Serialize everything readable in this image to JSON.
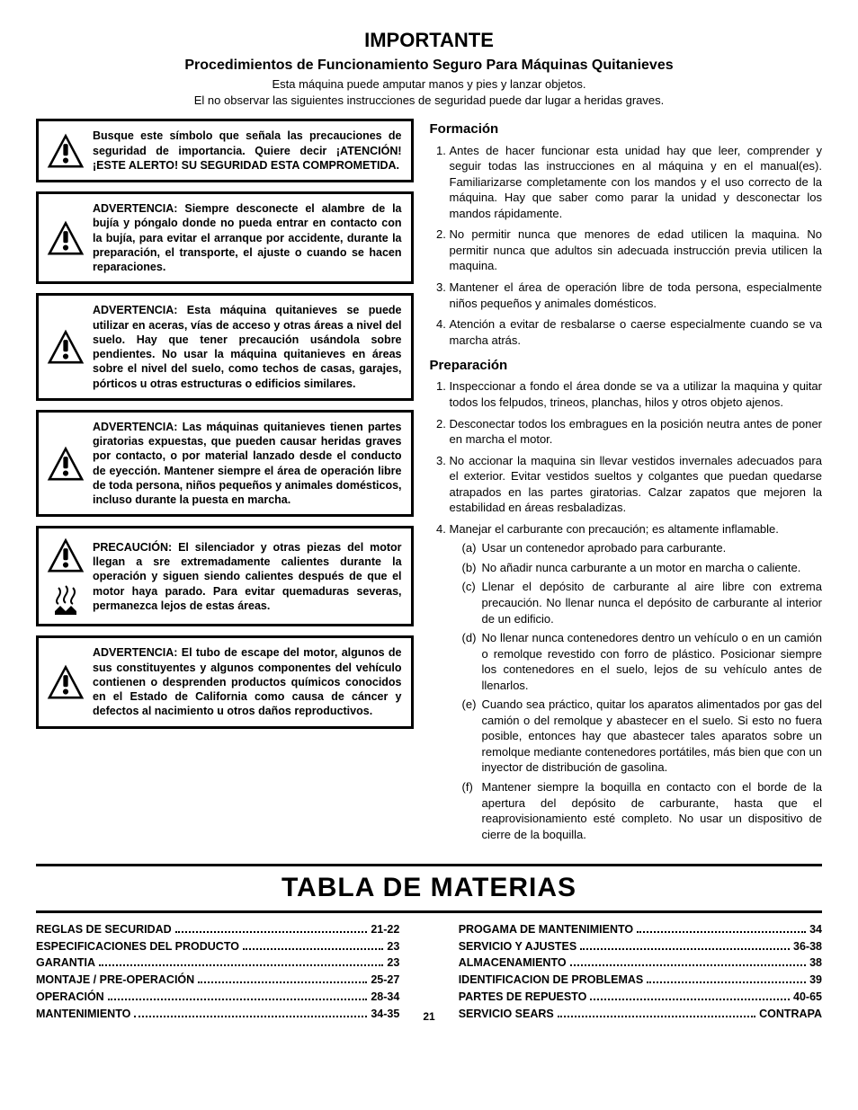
{
  "header": {
    "title": "IMPORTANTE",
    "subtitle": "Procedimientos de Funcionamiento Seguro Para Máquinas Quitanieves",
    "line1": "Esta máquina puede amputar manos y pies y lanzar objetos.",
    "line2": "El no observar las siguientes instrucciones de seguridad puede dar lugar a heridas graves."
  },
  "warnings": [
    {
      "text": "Busque este símbolo que señala las precauciones de seguridad de importancia. Quiere decir ¡ATENCIÓN! ¡ESTE ALERTO! SU SEGURIDAD ESTA COMPROMETIDA."
    },
    {
      "text": "ADVERTENCIA: Siempre desconecte el alambre de la bujía y póngalo donde no pueda entrar en contacto con la bujía, para evitar el arranque por accidente, durante la preparación, el transporte, el ajuste o cuando se hacen reparaciones."
    },
    {
      "text": "ADVERTENCIA: Esta máquina quitanieves se puede utilizar en aceras, vías de acceso y otras áreas a nivel del suelo. Hay que tener precaución usándola sobre pendientes. No usar la máquina quitanieves en áreas sobre el nivel del suelo, como techos de casas, garajes, pórticos u otras estructuras o edificios similares."
    },
    {
      "text": "ADVERTENCIA: Las máquinas quitanieves tienen partes giratorias expuestas, que pueden causar heridas graves por contacto, o por material lanzado desde el conducto de eyección. Mantener siempre el área de operación libre de toda persona, niños pequeños y animales domésticos, incluso durante la puesta en marcha."
    },
    {
      "text": "PRECAUCIÓN: El silenciador y otras piezas del motor llegan a sre extremadamente calientes durante la operación y siguen siendo calientes después de que el motor haya parado. Para evitar quemaduras severas, permanezca lejos de estas áreas.",
      "extraIcon": true
    },
    {
      "text": "ADVERTENCIA: El tubo de escape del motor, algunos de sus constituyentes y algunos componentes del vehículo contienen o desprenden productos químicos conocidos en el Estado de California como causa de cáncer y defectos al nacimiento u otros daños reproductivos."
    }
  ],
  "formacion": {
    "heading": "Formación",
    "items": [
      "Antes de hacer funcionar esta unidad hay que leer, comprender y seguir todas las instrucciones en al máquina y en el manual(es). Familiarizarse completamente con los mandos y el uso correcto de la máquina. Hay que saber como parar la unidad y desconectar los mandos rápidamente.",
      "No permitir nunca que menores de edad utilicen la maquina. No permitir nunca que adultos sin adecuada instrucción previa utilicen la maquina.",
      "Mantener el área de operación libre de toda persona, especialmente niños pequeños y animales domésticos.",
      "Atención a evitar de resbalarse o caerse especialmente cuando se va marcha atrás."
    ]
  },
  "preparacion": {
    "heading": "Preparación",
    "items": [
      {
        "text": "Inspeccionar a fondo el área donde se va a utilizar la maquina y quitar todos los felpudos, trineos, planchas, hilos y otros objeto ajenos."
      },
      {
        "text": "Desconectar todos los embragues en la posición neutra antes de poner en marcha el motor."
      },
      {
        "text": "No accionar la maquina sin llevar vestidos invernales adecuados para el exterior. Evitar vestidos sueltos y colgantes que puedan quedarse atrapados en las partes giratorias. Calzar zapatos que mejoren la estabilidad en áreas resbaladizas."
      },
      {
        "text": "Manejar el carburante con precaución; es altamente inflamable.",
        "sub": [
          {
            "l": "(a)",
            "t": "Usar un contenedor aprobado para carburante."
          },
          {
            "l": "(b)",
            "t": "No añadir nunca carburante a un motor en marcha o caliente."
          },
          {
            "l": "(c)",
            "t": "Llenar el depósito de carburante al aire libre con extrema precaución. No llenar nunca el depósito de carburante al interior de un edificio."
          },
          {
            "l": "(d)",
            "t": "No llenar nunca contenedores dentro un vehículo o en un camión o remolque revestido con forro de plástico. Posicionar siempre los contenedores en el suelo, lejos de su vehículo antes de llenarlos."
          },
          {
            "l": "(e)",
            "t": "Cuando sea práctico, quitar los aparatos alimentados por gas del camión o del remolque y abastecer en el suelo. Si esto no fuera posible, entonces hay que abastecer tales aparatos sobre un remolque mediante contenedores portátiles, más bien que con un inyector de distribución de gasolina."
          },
          {
            "l": "(f)",
            "t": "Mantener siempre la boquilla en contacto con el borde de la apertura del depósito de carburante, hasta que el reaprovisionamiento esté completo. No usar un dispositivo de cierre de la boquilla."
          }
        ]
      }
    ]
  },
  "toc": {
    "title": "TABLA DE MATERIAS",
    "left": [
      {
        "label": "REGLAS DE SECURIDAD",
        "page": "21-22"
      },
      {
        "label": "ESPECIFICACIONES DEL PRODUCTO",
        "page": "23"
      },
      {
        "label": "GARANTIA",
        "page": "23"
      },
      {
        "label": "MONTAJE / PRE-OPERACIÓN",
        "page": "25-27"
      },
      {
        "label": "OPERACIÓN",
        "page": "28-34"
      },
      {
        "label": "MANTENIMIENTO",
        "page": "34-35"
      }
    ],
    "right": [
      {
        "label": "PROGAMA DE MANTENIMIENTO",
        "page": "34"
      },
      {
        "label": "SERVICIO Y AJUSTES",
        "page": "36-38"
      },
      {
        "label": "ALMACENAMIENTO",
        "page": "38"
      },
      {
        "label": "IDENTIFICACION DE PROBLEMAS",
        "page": "39"
      },
      {
        "label": "PARTES DE REPUESTO",
        "page": "40-65"
      },
      {
        "label": "SERVICIO SEARS",
        "page": "CONTRAPA"
      }
    ]
  },
  "pageNumber": "21"
}
